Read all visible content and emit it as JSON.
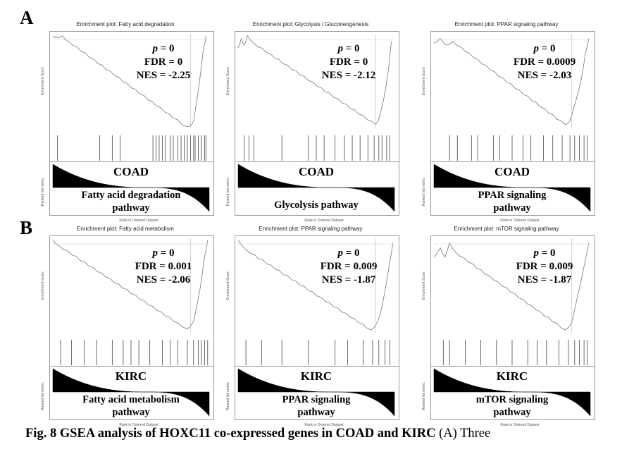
{
  "panels": [
    {
      "letter": "A",
      "dataset": "COAD",
      "plots": [
        {
          "title": "Enrichment plot: Fatty acid degradation",
          "p": "p",
          "p_val": " = 0",
          "fdr": "FDR = 0",
          "nes": "NES = -2.25",
          "pathway": [
            "Fatty acid degradation",
            "pathway"
          ]
        },
        {
          "title": "Enrichment plot: Glycolysis / Gluconeogenesis",
          "p": "p",
          "p_val": " = 0",
          "fdr": "FDR = 0",
          "nes": "NES = -2.12",
          "pathway": [
            "Glycolysis pathway"
          ]
        },
        {
          "title": "Enrichment plot: PPAR signaling pathway",
          "p": "p",
          "p_val": " = 0",
          "fdr": "FDR = 0.0009",
          "nes": "NES = -2.03",
          "pathway": [
            "PPAR signaling",
            "pathway"
          ]
        }
      ]
    },
    {
      "letter": "B",
      "dataset": "KIRC",
      "plots": [
        {
          "title": "Enrichment plot: Fatty acid metabolism",
          "p": "p",
          "p_val": " = 0",
          "fdr": "FDR = 0.001",
          "nes": "NES = -2.06",
          "pathway": [
            "Fatty acid metabolism",
            "pathway"
          ]
        },
        {
          "title": "Enrichment plot: PPAR signaling pathway",
          "p": "p",
          "p_val": " = 0",
          "fdr": "FDR = 0.009",
          "nes": "NES = -1.87",
          "pathway": [
            "PPAR signaling",
            "pathway"
          ]
        },
        {
          "title": "Enrichment plot: mTOR signaling pathway",
          "p": "p",
          "p_val": " = 0",
          "fdr": "FDR = 0.009",
          "nes": "NES = -1.87",
          "pathway": [
            "mTOR signaling",
            "pathway"
          ]
        }
      ]
    }
  ],
  "axis": {
    "es_label": "Enrichment Score",
    "rank_label": "Ranked list metric",
    "x_label": "Rank in Ordered Dataset"
  },
  "caption": {
    "bold": "Fig. 8 GSEA analysis of HOXC11 co-expressed genes in COAD and KIRC",
    "rest": " (A) Three"
  }
}
